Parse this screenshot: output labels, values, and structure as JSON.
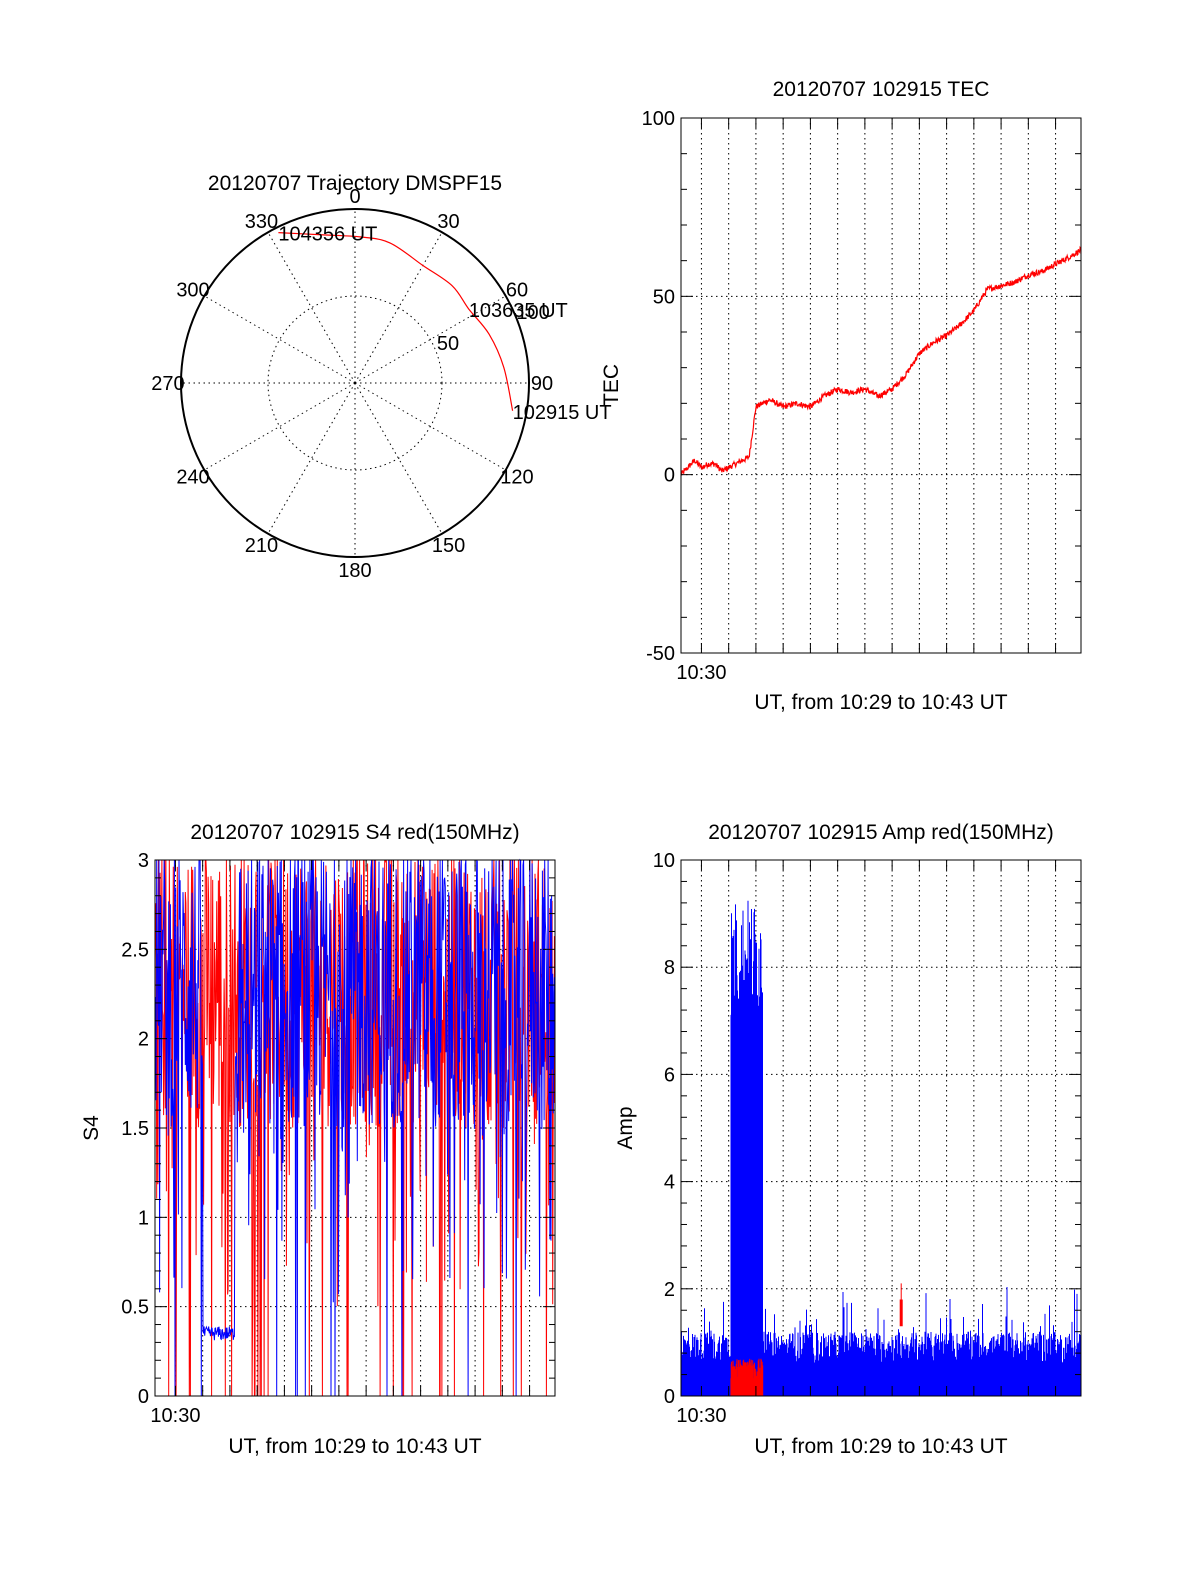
{
  "colors": {
    "red": "#ff0000",
    "blue": "#0000ff",
    "axis": "#000000",
    "background": "#ffffff"
  },
  "chart_data": [
    {
      "id": "trajectory",
      "type": "polar",
      "title": "20120707 Trajectory DMSPF15",
      "azimuth_labels": [
        "0",
        "30",
        "60",
        "90",
        "120",
        "150",
        "180",
        "210",
        "240",
        "270",
        "300",
        "330"
      ],
      "radial_labels": [
        "50",
        "100"
      ],
      "radial_ticks": [
        50,
        100
      ],
      "azimuths_deg": [
        0,
        30,
        60,
        90,
        120,
        150,
        180,
        210,
        240,
        270,
        300,
        330
      ],
      "rlim": [
        0,
        100
      ],
      "grid": true,
      "track": {
        "color": "red",
        "points": [
          {
            "az": 100,
            "r": 92
          },
          {
            "az": 84,
            "r": 86
          },
          {
            "az": 70,
            "r": 82
          },
          {
            "az": 57,
            "r": 78
          },
          {
            "az": 45,
            "r": 79
          },
          {
            "az": 30,
            "r": 78
          },
          {
            "az": 14,
            "r": 83
          },
          {
            "az": 2,
            "r": 84
          },
          {
            "az": -12,
            "r": 87
          },
          {
            "az": -27,
            "r": 97
          }
        ],
        "annotations": [
          {
            "text": "102915 UT",
            "az": 100,
            "r": 92
          },
          {
            "text": "103635 UT",
            "az": 57,
            "r": 78
          },
          {
            "text": "104356 UT",
            "az": -27,
            "r": 97
          }
        ]
      }
    },
    {
      "id": "tec",
      "type": "line",
      "title": "20120707 102915 TEC",
      "xlabel": "UT, from 10:29 to 10:43 UT",
      "ylabel": "TEC",
      "xlim": [
        "10:29:15",
        "10:43:56"
      ],
      "ylim": [
        -50,
        100
      ],
      "yticks": [
        -50,
        0,
        50,
        100
      ],
      "xtick_labels": [
        {
          "time": "10:30:00",
          "label": "10:30"
        }
      ],
      "grid": true,
      "series": [
        {
          "color": "red",
          "x": [
            "10:29:15",
            "10:29:30",
            "10:29:45",
            "10:30:00",
            "10:30:15",
            "10:30:30",
            "10:30:45",
            "10:31:00",
            "10:31:15",
            "10:31:30",
            "10:31:45",
            "10:32:00",
            "10:32:15",
            "10:32:30",
            "10:32:45",
            "10:33:00",
            "10:33:30",
            "10:34:00",
            "10:34:30",
            "10:35:00",
            "10:35:30",
            "10:36:00",
            "10:36:30",
            "10:37:00",
            "10:37:30",
            "10:38:00",
            "10:38:30",
            "10:39:00",
            "10:39:30",
            "10:40:00",
            "10:40:30",
            "10:41:00",
            "10:41:30",
            "10:42:00",
            "10:42:30",
            "10:43:00",
            "10:43:30",
            "10:43:56"
          ],
          "values": [
            0,
            2,
            4,
            2,
            3,
            3,
            1,
            2,
            3,
            4,
            5,
            19,
            20,
            21,
            20,
            19,
            20,
            19,
            22,
            24,
            23,
            24,
            22,
            24,
            28,
            34,
            37,
            39,
            42,
            46,
            52,
            53,
            54,
            56,
            57,
            59,
            61,
            63
          ]
        }
      ]
    },
    {
      "id": "s4",
      "type": "line",
      "title": "20120707 102915 S4 red(150MHz)",
      "xlabel": "UT, from 10:29 to 10:43 UT",
      "ylabel": "S4",
      "xlim": [
        "10:29:15",
        "10:43:56"
      ],
      "ylim": [
        0,
        3
      ],
      "yticks": [
        0,
        0.5,
        1,
        1.5,
        2,
        2.5,
        3
      ],
      "ytick_labels": [
        "0",
        "0.5",
        "1",
        "1.5",
        "2",
        "2.5",
        "3"
      ],
      "xtick_labels": [
        {
          "time": "10:30:00",
          "label": "10:30"
        }
      ],
      "grid": true,
      "series": [
        {
          "color": "red",
          "description_values": {
            "baseline_band": [
              1.4,
              3.0
            ],
            "dropouts_to": 0
          }
        },
        {
          "color": "blue",
          "description_values": {
            "baseline_band": [
              1.5,
              3.0
            ],
            "quiet_segment": {
              "from": "10:31:00",
              "to": "10:32:10",
              "level": 0.35
            }
          }
        }
      ]
    },
    {
      "id": "amp",
      "type": "line",
      "title": "20120707 102915 Amp red(150MHz)",
      "xlabel": "UT, from 10:29 to 10:43 UT",
      "ylabel": "Amp",
      "xlim": [
        "10:29:15",
        "10:43:56"
      ],
      "ylim": [
        0,
        10
      ],
      "yticks": [
        0,
        2,
        4,
        6,
        8,
        10
      ],
      "xtick_labels": [
        {
          "time": "10:30:00",
          "label": "10:30"
        }
      ],
      "grid": true,
      "series": [
        {
          "color": "blue",
          "description_values": {
            "base_level": 1.0,
            "burst": {
              "from": "10:31:05",
              "to": "10:32:15",
              "peak": 9.3
            }
          }
        },
        {
          "color": "red",
          "description_values": {
            "burst": {
              "from": "10:31:05",
              "to": "10:32:15",
              "level": 0.5
            },
            "spike": {
              "at": "10:37:20",
              "peak": 2.1
            }
          }
        }
      ]
    }
  ]
}
